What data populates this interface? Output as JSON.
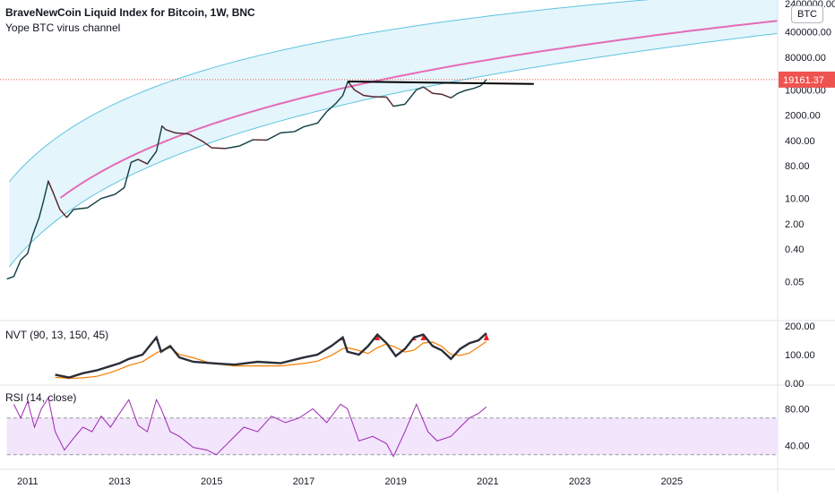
{
  "header": {
    "title": "BraveNewCoin Liquid Index for Bitcoin, 1W, BNC",
    "subtitle": "Yope BTC virus channel",
    "currency_badge": "BTC"
  },
  "colors": {
    "channel_stroke": "#5ec4e0",
    "channel_fill": "#dff3fb",
    "regression_line": "#e56bb6",
    "price_up": "#26a69a",
    "price_down": "#ef5350",
    "resistance_line": "#000000",
    "current_price_tag": "#ef5350",
    "nvt_line": "#2a2e39",
    "nvt_signal": "#f57c00",
    "nvt_high": "#ef2020",
    "rsi_line": "#9c27b0",
    "rsi_band": "#f3e5fc"
  },
  "price_axis_labels": [
    "2400000.00",
    "400000.00",
    "80000.00",
    "10000.00",
    "2000.00",
    "400.00",
    "80.00",
    "10.00",
    "2.00",
    "0.40",
    "0.05"
  ],
  "current_price": "19161.37",
  "nvt": {
    "label": "NVT (90, 13, 150, 45)",
    "axis_labels": [
      "200.00",
      "100.00",
      "0.00"
    ]
  },
  "rsi": {
    "label": "RSI (14, close)",
    "axis_labels": [
      "80.00",
      "40.00"
    ]
  },
  "time_axis_labels": [
    "2011",
    "2013",
    "2015",
    "2017",
    "2019",
    "2021",
    "2023",
    "2025"
  ],
  "chart_data": [
    {
      "type": "line",
      "title": "BraveNewCoin Liquid Index for Bitcoin, 1W, BNC",
      "scale": "log",
      "ylim": [
        0.01,
        2400000
      ],
      "xlim": [
        2010.4,
        2027.3
      ],
      "series": [
        {
          "name": "BTC price",
          "x": [
            2010.55,
            2010.7,
            2010.85,
            2011.0,
            2011.1,
            2011.25,
            2011.35,
            2011.45,
            2011.55,
            2011.7,
            2011.85,
            2012.0,
            2012.3,
            2012.6,
            2012.9,
            2013.1,
            2013.25,
            2013.4,
            2013.6,
            2013.8,
            2013.92,
            2014.0,
            2014.2,
            2014.5,
            2014.8,
            2015.0,
            2015.3,
            2015.6,
            2015.9,
            2016.2,
            2016.5,
            2016.8,
            2017.0,
            2017.3,
            2017.5,
            2017.7,
            2017.85,
            2017.96,
            2018.1,
            2018.3,
            2018.5,
            2018.8,
            2018.95,
            2019.2,
            2019.45,
            2019.6,
            2019.8,
            2020.0,
            2020.2,
            2020.35,
            2020.5,
            2020.7,
            2020.85,
            2020.97
          ],
          "values": [
            0.06,
            0.07,
            0.2,
            0.3,
            0.9,
            3,
            9,
            30,
            15,
            5,
            3,
            5,
            5.5,
            10,
            13,
            20,
            100,
            120,
            90,
            200,
            1000,
            800,
            650,
            600,
            380,
            250,
            240,
            280,
            420,
            410,
            650,
            700,
            950,
            1200,
            2500,
            4200,
            7000,
            17000,
            10000,
            7000,
            6500,
            6300,
            3500,
            4000,
            10000,
            12000,
            8000,
            7500,
            6000,
            8000,
            9500,
            11000,
            13000,
            19161.37
          ]
        }
      ]
    },
    {
      "type": "line",
      "title": "NVT (90, 13, 150, 45)",
      "ylim": [
        0,
        200
      ],
      "series": [
        {
          "name": "NVT",
          "x": [
            2011.6,
            2011.9,
            2012.2,
            2012.5,
            2012.8,
            2013.0,
            2013.2,
            2013.5,
            2013.8,
            2013.9,
            2014.1,
            2014.3,
            2014.6,
            2015.0,
            2015.5,
            2016.0,
            2016.5,
            2017.0,
            2017.3,
            2017.6,
            2017.85,
            2017.95,
            2018.2,
            2018.4,
            2018.6,
            2018.8,
            2019.0,
            2019.2,
            2019.4,
            2019.6,
            2019.8,
            2020.0,
            2020.2,
            2020.4,
            2020.6,
            2020.8,
            2020.97
          ],
          "values": [
            30,
            20,
            35,
            45,
            60,
            70,
            85,
            100,
            160,
            110,
            130,
            90,
            75,
            70,
            65,
            75,
            70,
            90,
            100,
            130,
            160,
            110,
            100,
            130,
            170,
            140,
            95,
            120,
            160,
            170,
            130,
            115,
            85,
            120,
            140,
            150,
            175
          ]
        }
      ]
    },
    {
      "type": "line",
      "title": "RSI (14, close)",
      "ylim": [
        20,
        100
      ],
      "series": [
        {
          "name": "RSI",
          "x": [
            2010.7,
            2010.85,
            2011.0,
            2011.15,
            2011.3,
            2011.45,
            2011.6,
            2011.8,
            2012.0,
            2012.2,
            2012.4,
            2012.6,
            2012.8,
            2013.0,
            2013.2,
            2013.4,
            2013.6,
            2013.8,
            2013.9,
            2014.1,
            2014.3,
            2014.6,
            2014.9,
            2015.1,
            2015.4,
            2015.7,
            2016.0,
            2016.3,
            2016.6,
            2016.9,
            2017.2,
            2017.5,
            2017.8,
            2017.95,
            2018.2,
            2018.5,
            2018.8,
            2018.95,
            2019.2,
            2019.45,
            2019.7,
            2019.9,
            2020.2,
            2020.4,
            2020.6,
            2020.8,
            2020.97
          ],
          "values": [
            85,
            70,
            88,
            60,
            80,
            92,
            55,
            35,
            48,
            60,
            55,
            72,
            60,
            75,
            90,
            62,
            55,
            90,
            80,
            55,
            50,
            38,
            35,
            30,
            45,
            60,
            55,
            72,
            65,
            70,
            80,
            65,
            85,
            80,
            45,
            50,
            42,
            28,
            55,
            85,
            55,
            45,
            50,
            60,
            70,
            75,
            82
          ]
        }
      ]
    }
  ]
}
